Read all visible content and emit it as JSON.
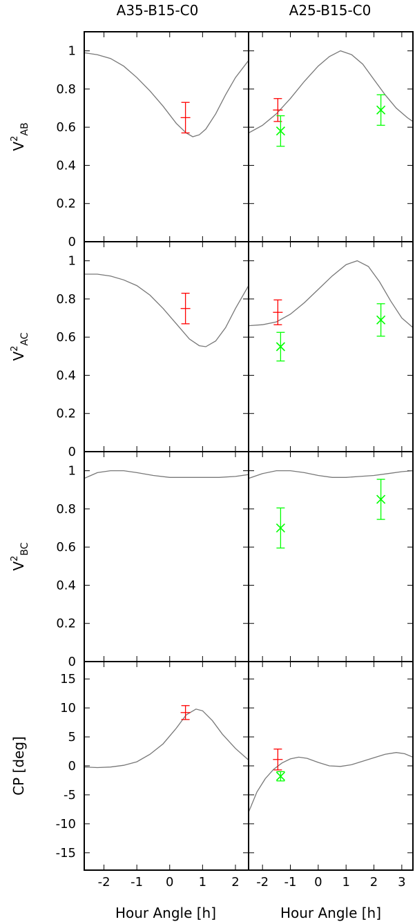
{
  "figure": {
    "columns": [
      "A35-B15-C0",
      "A25-B15-C0"
    ],
    "xlabel": "Hour Angle [h]"
  },
  "chart_data": [
    {
      "type": "line",
      "panel": "V2AB / A35-B15-C0",
      "ylabel_base": "V",
      "ylabel_sup": "2",
      "ylabel_sub": "AB",
      "xlim": [
        -2.6,
        2.4
      ],
      "ylim": [
        0,
        1.1
      ],
      "yticks": [
        0,
        0.2,
        0.4,
        0.6,
        0.8,
        1
      ],
      "series": [
        {
          "kind": "model",
          "color": "#777777",
          "x": [
            -2.6,
            -2.2,
            -1.8,
            -1.4,
            -1.0,
            -0.6,
            -0.2,
            0.2,
            0.5,
            0.7,
            0.9,
            1.1,
            1.4,
            1.7,
            2.0,
            2.4
          ],
          "y": [
            0.99,
            0.98,
            0.96,
            0.92,
            0.86,
            0.79,
            0.71,
            0.62,
            0.57,
            0.55,
            0.56,
            0.59,
            0.67,
            0.77,
            0.86,
            0.95
          ]
        },
        {
          "kind": "data",
          "color": "#ff0000",
          "marker": "plus",
          "x": [
            0.48
          ],
          "y": [
            0.65
          ],
          "yerr": [
            0.08
          ]
        }
      ]
    },
    {
      "type": "line",
      "panel": "V2AB / A25-B15-C0",
      "ylabel_base": "V",
      "ylabel_sup": "2",
      "ylabel_sub": "AB",
      "xlim": [
        -2.5,
        3.4
      ],
      "ylim": [
        0,
        1.1
      ],
      "yticks": [
        0,
        0.2,
        0.4,
        0.6,
        0.8,
        1
      ],
      "series": [
        {
          "kind": "model",
          "color": "#777777",
          "x": [
            -2.5,
            -2.0,
            -1.5,
            -1.0,
            -0.5,
            0.0,
            0.4,
            0.8,
            1.2,
            1.6,
            2.0,
            2.4,
            2.8,
            3.2,
            3.4
          ],
          "y": [
            0.57,
            0.61,
            0.67,
            0.75,
            0.84,
            0.92,
            0.97,
            1.0,
            0.98,
            0.93,
            0.85,
            0.77,
            0.7,
            0.65,
            0.63
          ]
        },
        {
          "kind": "data",
          "color": "#ff0000",
          "marker": "plus",
          "x": [
            -1.45
          ],
          "y": [
            0.69
          ],
          "yerr": [
            0.06
          ]
        },
        {
          "kind": "data",
          "color": "#00ff00",
          "marker": "cross",
          "x": [
            -1.35,
            2.25
          ],
          "y": [
            0.58,
            0.69
          ],
          "yerr": [
            0.08,
            0.08
          ]
        }
      ]
    },
    {
      "type": "line",
      "panel": "V2AC / A35-B15-C0",
      "ylabel_base": "V",
      "ylabel_sup": "2",
      "ylabel_sub": "AC",
      "xlim": [
        -2.6,
        2.4
      ],
      "ylim": [
        0,
        1.1
      ],
      "yticks": [
        0,
        0.2,
        0.4,
        0.6,
        0.8,
        1
      ],
      "series": [
        {
          "kind": "model",
          "color": "#777777",
          "x": [
            -2.6,
            -2.2,
            -1.8,
            -1.4,
            -1.0,
            -0.6,
            -0.2,
            0.2,
            0.6,
            0.9,
            1.1,
            1.4,
            1.7,
            2.0,
            2.4
          ],
          "y": [
            0.93,
            0.93,
            0.92,
            0.9,
            0.87,
            0.82,
            0.75,
            0.67,
            0.59,
            0.555,
            0.55,
            0.58,
            0.65,
            0.75,
            0.87
          ]
        },
        {
          "kind": "data",
          "color": "#ff0000",
          "marker": "plus",
          "x": [
            0.48
          ],
          "y": [
            0.75
          ],
          "yerr": [
            0.08
          ]
        }
      ]
    },
    {
      "type": "line",
      "panel": "V2AC / A25-B15-C0",
      "ylabel_base": "V",
      "ylabel_sup": "2",
      "ylabel_sub": "AC",
      "xlim": [
        -2.5,
        3.4
      ],
      "ylim": [
        0,
        1.1
      ],
      "yticks": [
        0,
        0.2,
        0.4,
        0.6,
        0.8,
        1
      ],
      "series": [
        {
          "kind": "model",
          "color": "#777777",
          "x": [
            -2.5,
            -2.0,
            -1.5,
            -1.0,
            -0.5,
            0.0,
            0.5,
            1.0,
            1.4,
            1.8,
            2.2,
            2.6,
            3.0,
            3.4
          ],
          "y": [
            0.66,
            0.665,
            0.68,
            0.72,
            0.78,
            0.85,
            0.92,
            0.98,
            1.0,
            0.97,
            0.89,
            0.79,
            0.7,
            0.65
          ]
        },
        {
          "kind": "data",
          "color": "#ff0000",
          "marker": "plus",
          "x": [
            -1.45
          ],
          "y": [
            0.73
          ],
          "yerr": [
            0.065
          ]
        },
        {
          "kind": "data",
          "color": "#00ff00",
          "marker": "cross",
          "x": [
            -1.35,
            2.25
          ],
          "y": [
            0.55,
            0.69
          ],
          "yerr": [
            0.075,
            0.085
          ]
        }
      ]
    },
    {
      "type": "line",
      "panel": "V2BC / A35-B15-C0",
      "ylabel_base": "V",
      "ylabel_sup": "2",
      "ylabel_sub": "BC",
      "xlim": [
        -2.6,
        2.4
      ],
      "ylim": [
        0,
        1.1
      ],
      "yticks": [
        0,
        0.2,
        0.4,
        0.6,
        0.8,
        1
      ],
      "series": [
        {
          "kind": "model",
          "color": "#777777",
          "x": [
            -2.6,
            -2.2,
            -1.8,
            -1.4,
            -1.0,
            -0.5,
            0.0,
            0.5,
            1.0,
            1.5,
            2.0,
            2.4
          ],
          "y": [
            0.96,
            0.99,
            1.0,
            1.0,
            0.99,
            0.975,
            0.965,
            0.965,
            0.965,
            0.965,
            0.97,
            0.98
          ]
        }
      ]
    },
    {
      "type": "line",
      "panel": "V2BC / A25-B15-C0",
      "ylabel_base": "V",
      "ylabel_sup": "2",
      "ylabel_sub": "BC",
      "xlim": [
        -2.5,
        3.4
      ],
      "ylim": [
        0,
        1.1
      ],
      "yticks": [
        0,
        0.2,
        0.4,
        0.6,
        0.8,
        1
      ],
      "series": [
        {
          "kind": "model",
          "color": "#777777",
          "x": [
            -2.5,
            -2.0,
            -1.5,
            -1.0,
            -0.5,
            0.0,
            0.5,
            1.0,
            1.5,
            2.0,
            2.5,
            3.0,
            3.4
          ],
          "y": [
            0.96,
            0.985,
            1.0,
            1.0,
            0.99,
            0.975,
            0.965,
            0.965,
            0.97,
            0.975,
            0.985,
            0.995,
            1.0
          ]
        },
        {
          "kind": "data",
          "color": "#00ff00",
          "marker": "cross",
          "x": [
            -1.35,
            2.25
          ],
          "y": [
            0.7,
            0.85
          ],
          "yerr": [
            0.105,
            0.105
          ]
        }
      ]
    },
    {
      "type": "line",
      "panel": "CP / A35-B15-C0",
      "ylabel": "CP [deg]",
      "xlim": [
        -2.6,
        2.4
      ],
      "ylim": [
        -18,
        18
      ],
      "yticks": [
        -15,
        -10,
        -5,
        0,
        5,
        10,
        15
      ],
      "series": [
        {
          "kind": "model",
          "color": "#777777",
          "x": [
            -2.6,
            -2.2,
            -1.8,
            -1.4,
            -1.0,
            -0.6,
            -0.2,
            0.2,
            0.5,
            0.8,
            1.0,
            1.3,
            1.6,
            2.0,
            2.4
          ],
          "y": [
            -0.2,
            -0.3,
            -0.2,
            0.1,
            0.7,
            2.0,
            3.8,
            6.5,
            8.8,
            9.8,
            9.5,
            7.8,
            5.5,
            3.0,
            1.0
          ]
        },
        {
          "kind": "data",
          "color": "#ff0000",
          "marker": "plus",
          "x": [
            0.48
          ],
          "y": [
            9.2
          ],
          "yerr": [
            1.2
          ]
        }
      ]
    },
    {
      "type": "line",
      "panel": "CP / A25-B15-C0",
      "ylabel": "CP [deg]",
      "xlim": [
        -2.5,
        3.4
      ],
      "ylim": [
        -18,
        18
      ],
      "yticks": [
        -15,
        -10,
        -5,
        0,
        5,
        10,
        15
      ],
      "series": [
        {
          "kind": "model",
          "color": "#777777",
          "x": [
            -2.5,
            -2.2,
            -1.9,
            -1.6,
            -1.3,
            -1.0,
            -0.7,
            -0.4,
            0.0,
            0.4,
            0.8,
            1.2,
            1.6,
            2.0,
            2.4,
            2.8,
            3.1,
            3.4
          ],
          "y": [
            -8.0,
            -4.5,
            -2.2,
            -0.6,
            0.5,
            1.2,
            1.5,
            1.3,
            0.6,
            0.0,
            -0.1,
            0.2,
            0.8,
            1.4,
            2.0,
            2.3,
            2.1,
            1.5
          ]
        },
        {
          "kind": "data",
          "color": "#ff0000",
          "marker": "plus",
          "x": [
            -1.45
          ],
          "y": [
            1.1
          ],
          "yerr": [
            1.8
          ]
        },
        {
          "kind": "data",
          "color": "#00ff00",
          "marker": "cross",
          "x": [
            -1.35
          ],
          "y": [
            -1.8
          ],
          "yerr": [
            0.8
          ]
        }
      ]
    }
  ]
}
